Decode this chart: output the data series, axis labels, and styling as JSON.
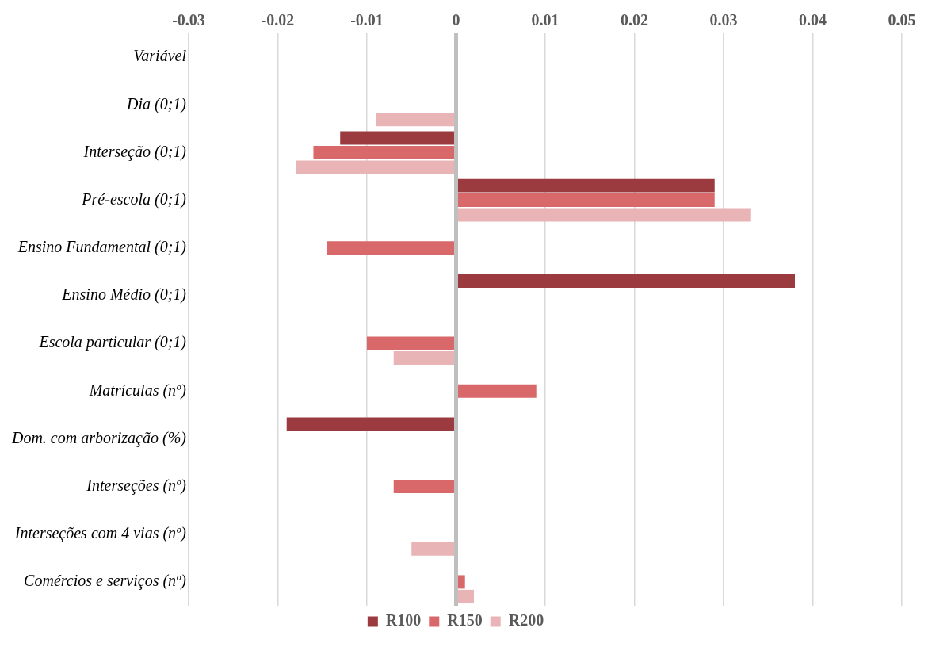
{
  "chart_data": {
    "type": "bar",
    "orientation": "horizontal",
    "categories": [
      "Variável",
      "Dia (0;1)",
      "Interseção (0;1)",
      "Pré-escola (0;1)",
      "Ensino Fundamental (0;1)",
      "Ensino Médio (0;1)",
      "Escola particular (0;1)",
      "Matrículas (nº)",
      "Dom. com arborização (%)",
      "Interseções (nº)",
      "Interseções com 4 vias (nº)",
      "Comércios e serviços (nº)"
    ],
    "series": [
      {
        "name": "R100",
        "color": "#9b3b3f",
        "values": [
          null,
          null,
          -0.013,
          0.029,
          null,
          0.038,
          null,
          null,
          -0.019,
          null,
          null,
          null
        ]
      },
      {
        "name": "R150",
        "color": "#d9686a",
        "values": [
          null,
          null,
          -0.016,
          0.029,
          -0.0145,
          null,
          -0.01,
          0.009,
          null,
          -0.007,
          null,
          0.001
        ]
      },
      {
        "name": "R200",
        "color": "#e8b4b6",
        "values": [
          null,
          -0.009,
          -0.018,
          0.033,
          null,
          null,
          -0.007,
          null,
          null,
          null,
          -0.005,
          0.002
        ]
      }
    ],
    "xlim": [
      -0.03,
      0.05
    ],
    "xticks": [
      -0.03,
      -0.02,
      -0.01,
      0,
      0.01,
      0.02,
      0.03,
      0.04,
      0.05
    ],
    "grid": "x",
    "legend": "bottom"
  }
}
